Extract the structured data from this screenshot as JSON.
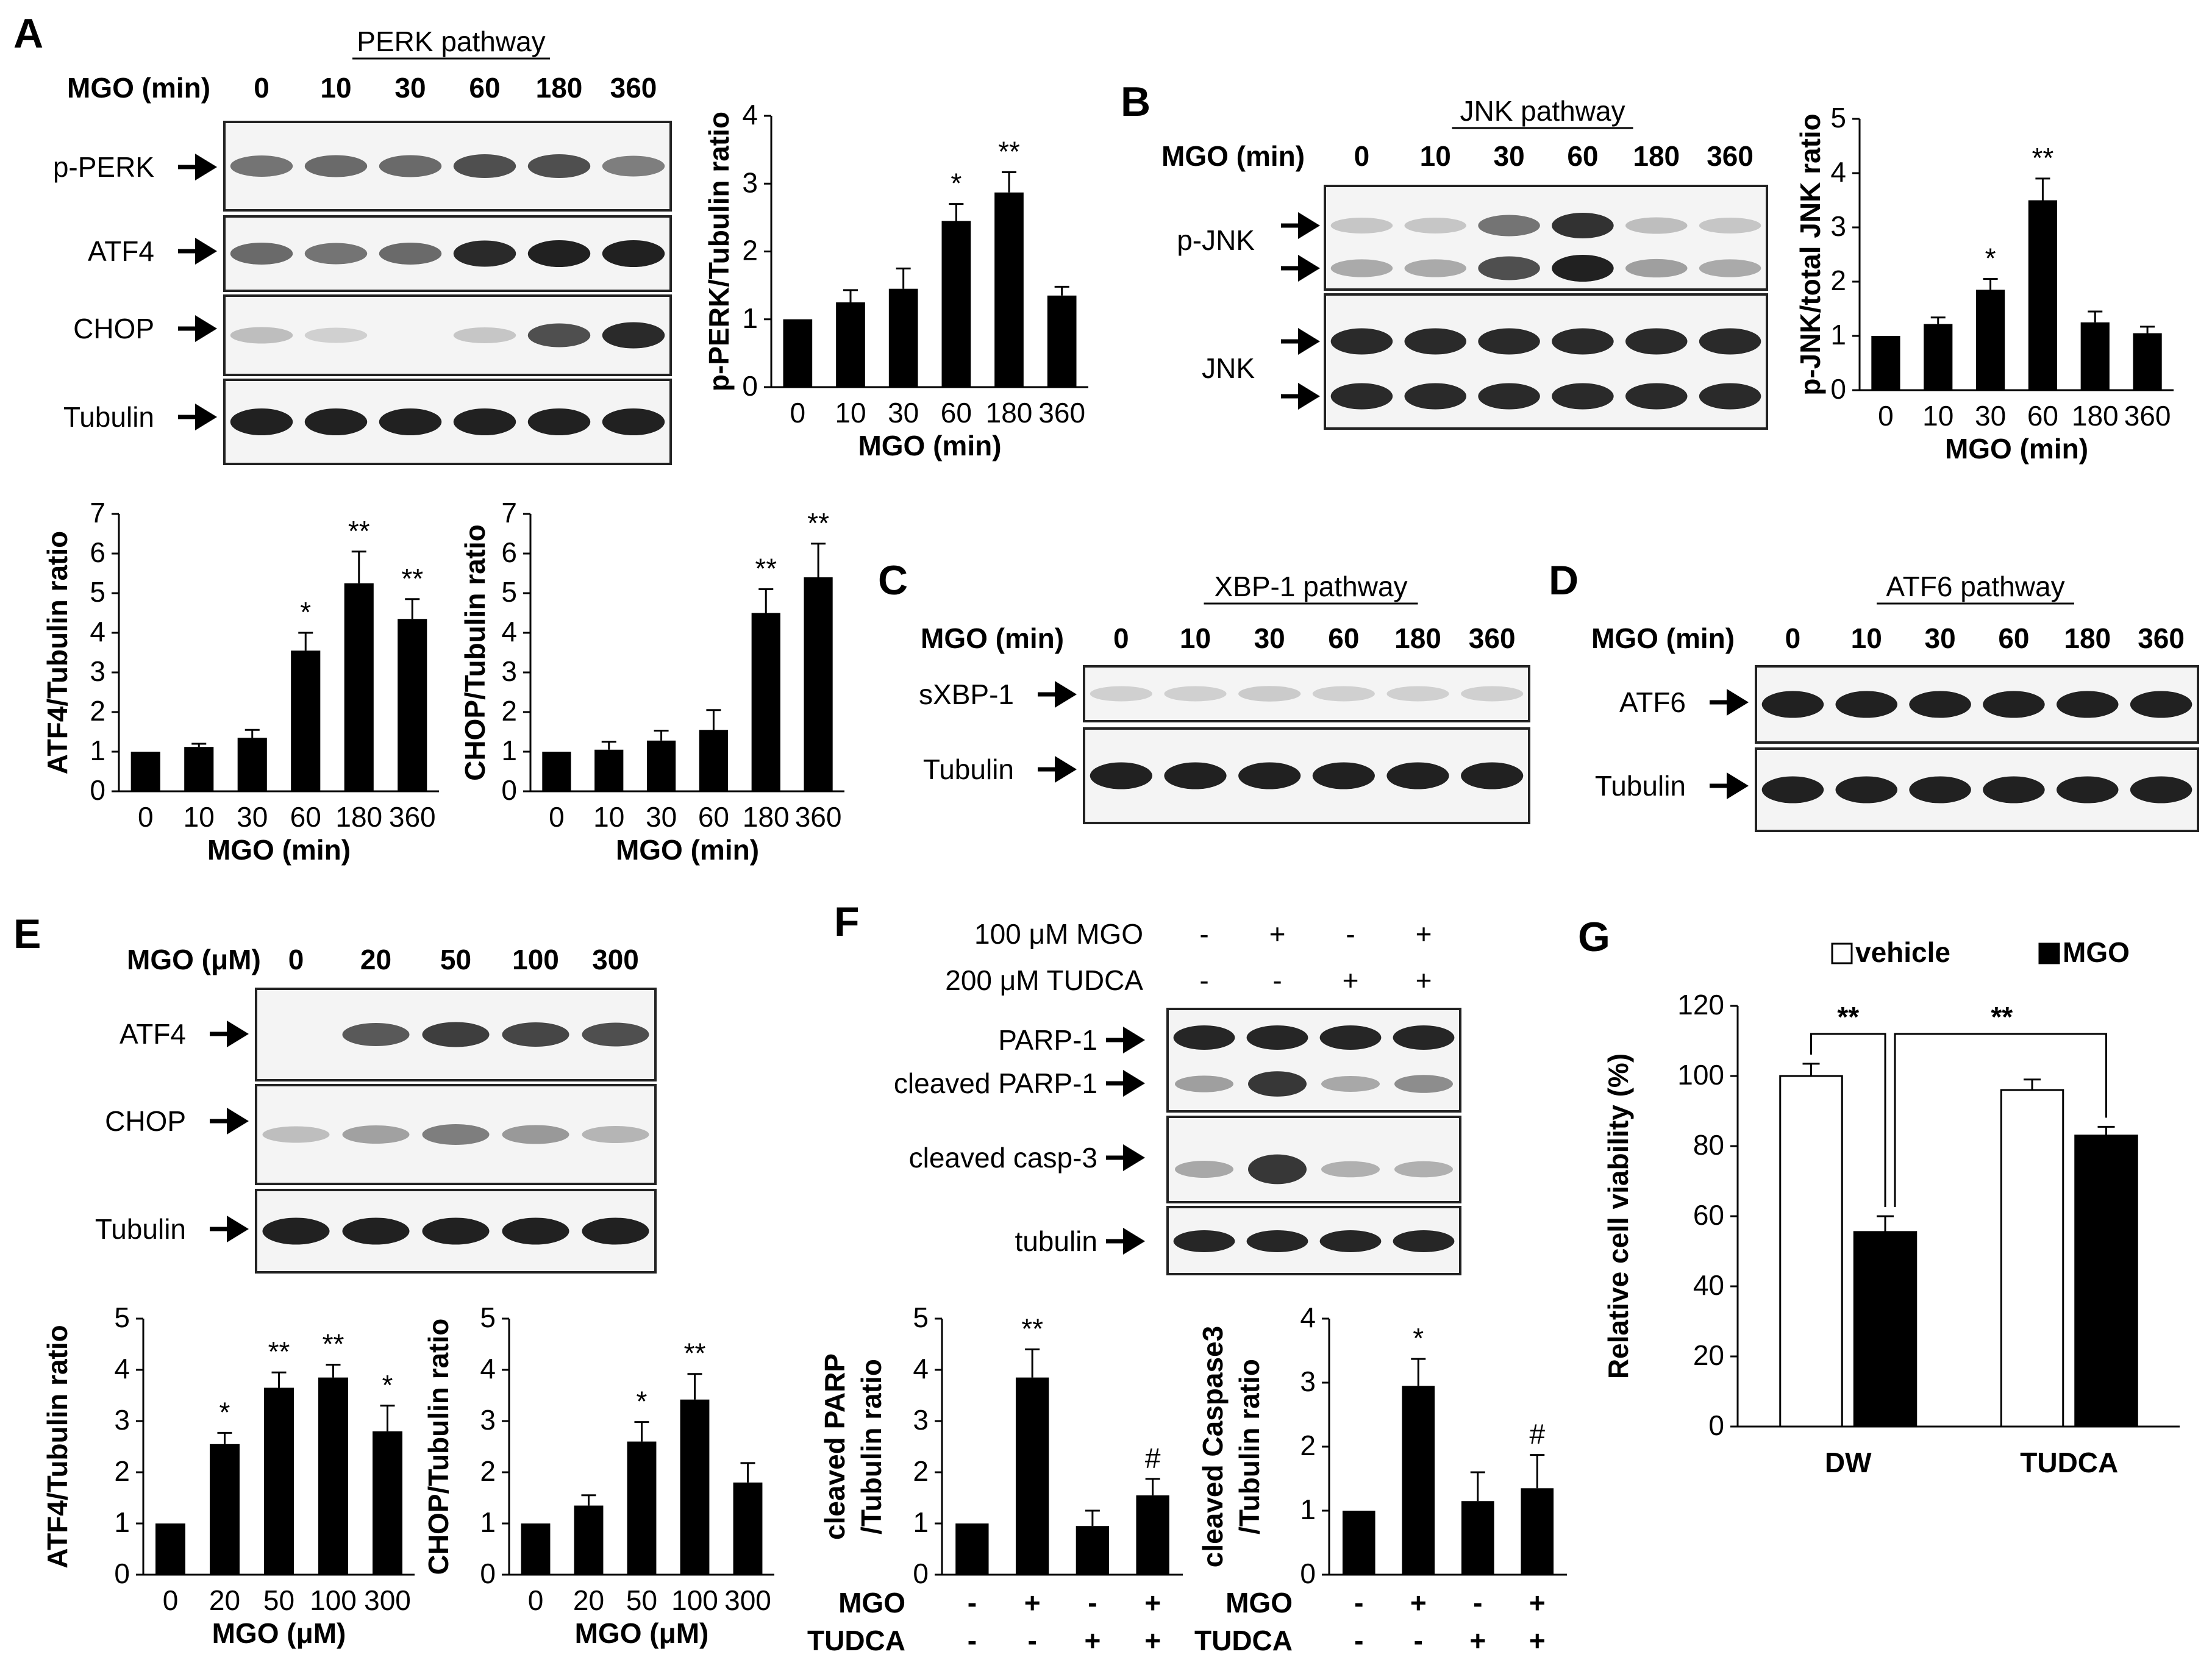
{
  "panels": {
    "A": "A",
    "B": "B",
    "C": "C",
    "D": "D",
    "E": "E",
    "F": "F",
    "G": "G"
  },
  "blots": {
    "A": {
      "pathway": "PERK pathway",
      "cond_label": "MGO (min)",
      "lanes": [
        "0",
        "10",
        "30",
        "60",
        "180",
        "360"
      ],
      "rows": [
        {
          "label": "p-PERK",
          "bands": [
            0.55,
            0.6,
            0.6,
            0.75,
            0.75,
            0.5
          ]
        },
        {
          "label": "ATF4",
          "bands": [
            0.6,
            0.55,
            0.6,
            0.95,
            1.0,
            1.0
          ]
        },
        {
          "label": "CHOP",
          "bands": [
            0.15,
            0.05,
            0.0,
            0.1,
            0.75,
            0.95
          ]
        },
        {
          "label": "Tubulin",
          "bands": [
            1,
            1,
            1,
            1,
            1,
            1
          ]
        }
      ]
    },
    "B": {
      "pathway": "JNK pathway",
      "cond_label": "MGO (min)",
      "lanes": [
        "0",
        "10",
        "30",
        "60",
        "180",
        "360"
      ],
      "rows": [
        {
          "label": "p-JNK",
          "bands": [
            0.1,
            0.1,
            0.55,
            0.9,
            0.15,
            0.1
          ]
        },
        {
          "label": "JNK",
          "bands": [
            0.95,
            0.95,
            0.95,
            0.95,
            0.95,
            0.95
          ]
        }
      ]
    },
    "C": {
      "pathway": "XBP-1 pathway",
      "cond_label": "MGO (min)",
      "lanes": [
        "0",
        "10",
        "30",
        "60",
        "180",
        "360"
      ],
      "rows": [
        {
          "label": "sXBP-1",
          "bands": [
            0.05,
            0.05,
            0.08,
            0.05,
            0.05,
            0.05
          ]
        },
        {
          "label": "Tubulin",
          "bands": [
            1,
            1,
            1,
            1,
            1,
            1
          ]
        }
      ]
    },
    "D": {
      "pathway": "ATF6 pathway",
      "cond_label": "MGO (min)",
      "lanes": [
        "0",
        "10",
        "30",
        "60",
        "180",
        "360"
      ],
      "rows": [
        {
          "label": "ATF6",
          "bands": [
            1,
            1,
            1,
            1,
            1,
            1
          ]
        },
        {
          "label": "Tubulin",
          "bands": [
            1,
            1,
            1,
            1,
            1,
            1
          ]
        }
      ]
    },
    "E": {
      "cond_label": "MGO (μM)",
      "lanes": [
        "0",
        "20",
        "50",
        "100",
        "300"
      ],
      "rows": [
        {
          "label": "ATF4",
          "bands": [
            0.0,
            0.7,
            0.85,
            0.8,
            0.75
          ]
        },
        {
          "label": "CHOP",
          "bands": [
            0.15,
            0.3,
            0.5,
            0.35,
            0.2
          ]
        },
        {
          "label": "Tubulin",
          "bands": [
            1,
            1,
            1,
            1,
            1
          ]
        }
      ]
    },
    "F": {
      "conditions": [
        {
          "label": "100 μM MGO",
          "signs": [
            "-",
            "+",
            "-",
            "+"
          ]
        },
        {
          "label": "200 μM TUDCA",
          "signs": [
            "-",
            "-",
            "+",
            "+"
          ]
        }
      ],
      "rows": [
        {
          "label": "PARP-1",
          "bands": [
            1,
            1,
            1,
            1
          ]
        },
        {
          "label": "cleaved PARP-1",
          "bands": [
            0.3,
            0.9,
            0.25,
            0.4
          ]
        },
        {
          "label": "cleaved casp-3",
          "bands": [
            0.25,
            0.9,
            0.2,
            0.2
          ]
        },
        {
          "label": "tubulin",
          "bands": [
            1,
            1,
            1,
            1
          ]
        }
      ]
    }
  },
  "chart_data": [
    {
      "id": "pPERK",
      "type": "bar",
      "ylabel": "p-PERK/Tubulin ratio",
      "xlabel": "MGO (min)",
      "categories": [
        "0",
        "10",
        "30",
        "60",
        "180",
        "360"
      ],
      "values": [
        1.0,
        1.25,
        1.45,
        2.45,
        2.87,
        1.35
      ],
      "errors": [
        0.0,
        0.18,
        0.3,
        0.25,
        0.3,
        0.13
      ],
      "sig": [
        "",
        "",
        "",
        "*",
        "**",
        ""
      ],
      "ylim": [
        0,
        4
      ],
      "yticks": [
        0,
        1,
        2,
        3,
        4
      ]
    },
    {
      "id": "pJNK",
      "type": "bar",
      "ylabel": "p-JNK/total JNK ratio",
      "xlabel": "MGO (min)",
      "categories": [
        "0",
        "10",
        "30",
        "60",
        "180",
        "360"
      ],
      "values": [
        1.0,
        1.22,
        1.85,
        3.5,
        1.25,
        1.05
      ],
      "errors": [
        0.0,
        0.12,
        0.2,
        0.4,
        0.2,
        0.12
      ],
      "sig": [
        "",
        "",
        "*",
        "**",
        "",
        ""
      ],
      "ylim": [
        0,
        5
      ],
      "yticks": [
        0,
        1,
        2,
        3,
        4,
        5
      ]
    },
    {
      "id": "ATF4_min",
      "type": "bar",
      "ylabel": "ATF4/Tubulin ratio",
      "xlabel": "MGO (min)",
      "categories": [
        "0",
        "10",
        "30",
        "60",
        "180",
        "360"
      ],
      "values": [
        1.0,
        1.12,
        1.35,
        3.55,
        5.25,
        4.35
      ],
      "errors": [
        0.0,
        0.08,
        0.2,
        0.45,
        0.8,
        0.5
      ],
      "sig": [
        "",
        "",
        "",
        "*",
        "**",
        "**"
      ],
      "ylim": [
        0,
        7
      ],
      "yticks": [
        0,
        1,
        2,
        3,
        4,
        5,
        6,
        7
      ]
    },
    {
      "id": "CHOP_min",
      "type": "bar",
      "ylabel": "CHOP/Tubulin ratio",
      "xlabel": "MGO (min)",
      "categories": [
        "0",
        "10",
        "30",
        "60",
        "180",
        "360"
      ],
      "values": [
        1.0,
        1.05,
        1.28,
        1.55,
        4.5,
        5.4
      ],
      "errors": [
        0.0,
        0.2,
        0.25,
        0.5,
        0.6,
        0.85
      ],
      "sig": [
        "",
        "",
        "",
        "",
        "**",
        "**"
      ],
      "ylim": [
        0,
        7
      ],
      "yticks": [
        0,
        1,
        2,
        3,
        4,
        5,
        6,
        7
      ]
    },
    {
      "id": "ATF4_uM",
      "type": "bar",
      "ylabel": "ATF4/Tubulin ratio",
      "xlabel": "MGO (μM)",
      "categories": [
        "0",
        "20",
        "50",
        "100",
        "300"
      ],
      "values": [
        1.0,
        2.55,
        3.65,
        3.85,
        2.8
      ],
      "errors": [
        0.0,
        0.22,
        0.3,
        0.25,
        0.5
      ],
      "sig": [
        "",
        "*",
        "**",
        "**",
        "*"
      ],
      "ylim": [
        0,
        5
      ],
      "yticks": [
        0,
        1,
        2,
        3,
        4,
        5
      ]
    },
    {
      "id": "CHOP_uM",
      "type": "bar",
      "ylabel": "CHOP/Tubulin ratio",
      "xlabel": "MGO (μM)",
      "categories": [
        "0",
        "20",
        "50",
        "100",
        "300"
      ],
      "values": [
        1.0,
        1.35,
        2.6,
        3.42,
        1.8
      ],
      "errors": [
        0.0,
        0.2,
        0.38,
        0.5,
        0.38
      ],
      "sig": [
        "",
        "",
        "*",
        "**",
        ""
      ],
      "ylim": [
        0,
        5
      ],
      "yticks": [
        0,
        1,
        2,
        3,
        4,
        5
      ]
    },
    {
      "id": "cPARP",
      "type": "bar",
      "ylabel": [
        "cleaved PARP",
        "/Tubulin ratio"
      ],
      "rows": [
        {
          "label": "MGO",
          "signs": [
            "-",
            "+",
            "-",
            "+"
          ]
        },
        {
          "label": "TUDCA",
          "signs": [
            "-",
            "-",
            "+",
            "+"
          ]
        }
      ],
      "values": [
        1.0,
        3.85,
        0.95,
        1.55
      ],
      "errors": [
        0.0,
        0.55,
        0.3,
        0.32
      ],
      "sig": [
        "",
        "**",
        "",
        "#"
      ],
      "ylim": [
        0,
        5
      ],
      "yticks": [
        0,
        1,
        2,
        3,
        4,
        5
      ]
    },
    {
      "id": "cCasp3",
      "type": "bar",
      "ylabel": [
        "cleaved Caspase3",
        "/Tubulin ratio"
      ],
      "rows": [
        {
          "label": "MGO",
          "signs": [
            "-",
            "+",
            "-",
            "+"
          ]
        },
        {
          "label": "TUDCA",
          "signs": [
            "-",
            "-",
            "+",
            "+"
          ]
        }
      ],
      "values": [
        1.0,
        2.95,
        1.15,
        1.35
      ],
      "errors": [
        0.0,
        0.42,
        0.45,
        0.52
      ],
      "sig": [
        "",
        "*",
        "",
        "#"
      ],
      "ylim": [
        0,
        4
      ],
      "yticks": [
        0,
        1,
        2,
        3,
        4
      ]
    },
    {
      "id": "viability",
      "type": "bar",
      "ylabel": "Relative cell viability (%)",
      "categories": [
        "DW",
        "TUDCA"
      ],
      "series": [
        {
          "name": "vehicle",
          "color": "#ffffff",
          "values": [
            100,
            96
          ],
          "errors": [
            3.5,
            3
          ]
        },
        {
          "name": "MGO",
          "color": "#000000",
          "values": [
            55.5,
            83
          ],
          "errors": [
            4.5,
            2.5
          ]
        }
      ],
      "sig": [
        "**",
        "**"
      ],
      "ylim": [
        0,
        120
      ],
      "yticks": [
        0,
        20,
        40,
        60,
        80,
        100,
        120
      ],
      "legend": "top"
    }
  ]
}
